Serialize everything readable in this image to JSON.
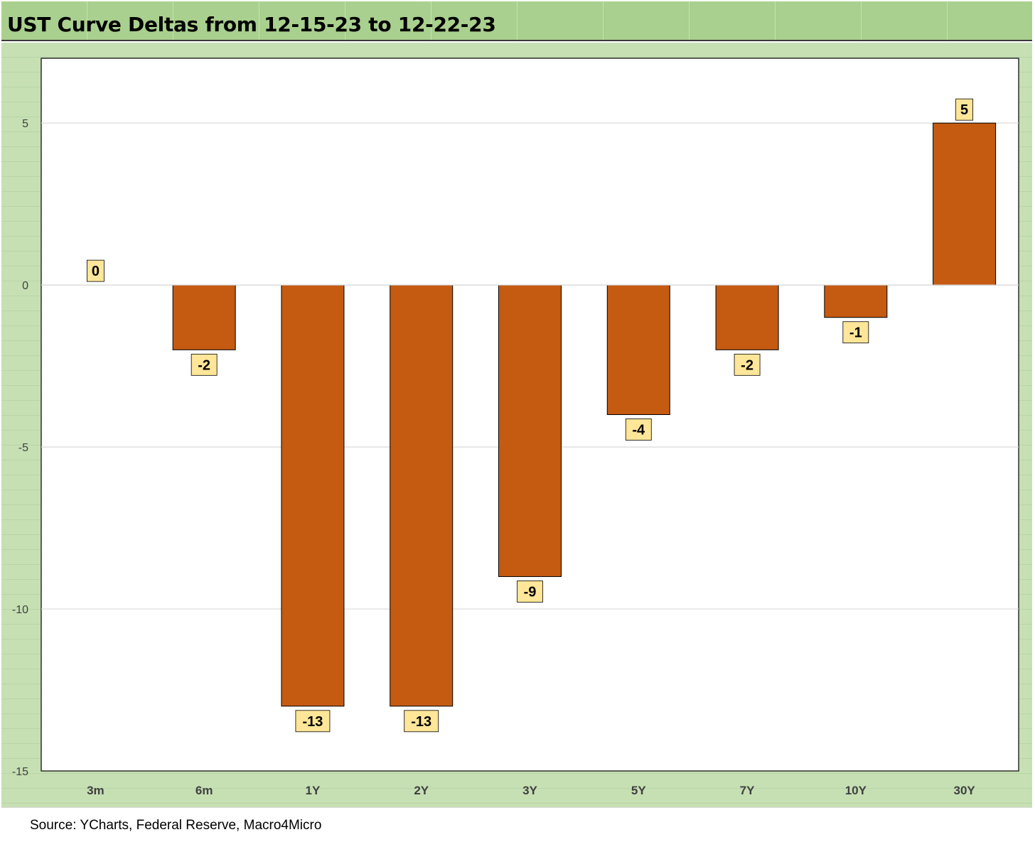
{
  "chart_data": {
    "type": "bar",
    "title": "UST Curve Deltas from 12-15-23 to 12-22-23",
    "categories": [
      "3m",
      "6m",
      "1Y",
      "2Y",
      "3Y",
      "5Y",
      "7Y",
      "10Y",
      "30Y"
    ],
    "values": [
      0,
      -2,
      -13,
      -13,
      -9,
      -4,
      -2,
      -1,
      5
    ],
    "data_labels": [
      "0",
      "-2",
      "-13",
      "-13",
      "-9",
      "-4",
      "-2",
      "-1",
      "5"
    ],
    "ylim": [
      -15,
      7
    ],
    "yticks": [
      5,
      0,
      -5,
      -10,
      -15
    ],
    "ytick_labels": [
      "5",
      "0",
      "-5",
      "-10",
      "-15"
    ],
    "xlabel": "",
    "ylabel": "",
    "grid": true,
    "legend": "none",
    "bar_color": "#c55a11",
    "label_bg": "#ffe699",
    "background": "#c6e0b4",
    "header_color": "#a9d08e"
  },
  "source": "Source: YCharts, Federal Reserve, Macro4Micro"
}
